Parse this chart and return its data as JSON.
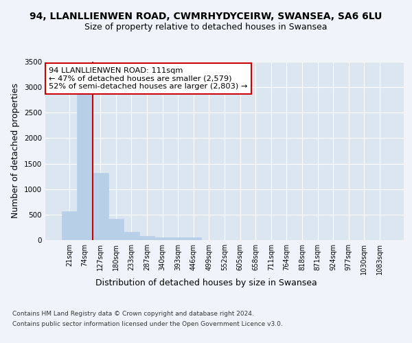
{
  "title1": "94, LLANLLIENWEN ROAD, CWMRHYDYCEIRW, SWANSEA, SA6 6LU",
  "title2": "Size of property relative to detached houses in Swansea",
  "xlabel": "Distribution of detached houses by size in Swansea",
  "ylabel": "Number of detached properties",
  "categories": [
    "21sqm",
    "74sqm",
    "127sqm",
    "180sqm",
    "233sqm",
    "287sqm",
    "340sqm",
    "393sqm",
    "446sqm",
    "499sqm",
    "552sqm",
    "605sqm",
    "658sqm",
    "711sqm",
    "764sqm",
    "818sqm",
    "871sqm",
    "924sqm",
    "977sqm",
    "1030sqm",
    "1083sqm"
  ],
  "values": [
    570,
    2910,
    1315,
    415,
    160,
    85,
    60,
    55,
    50,
    0,
    0,
    0,
    0,
    0,
    0,
    0,
    0,
    0,
    0,
    0,
    0
  ],
  "bar_color": "#b8cfe8",
  "bar_edge_color": "#b8cfe8",
  "highlight_bar_index": 1,
  "highlight_line_color": "#cc0000",
  "ylim": [
    0,
    3500
  ],
  "yticks": [
    0,
    500,
    1000,
    1500,
    2000,
    2500,
    3000,
    3500
  ],
  "annotation_text": "94 LLANLLIENWEN ROAD: 111sqm\n← 47% of detached houses are smaller (2,579)\n52% of semi-detached houses are larger (2,803) →",
  "annotation_box_color": "#ffffff",
  "annotation_box_edge": "#cc0000",
  "footnote1": "Contains HM Land Registry data © Crown copyright and database right 2024.",
  "footnote2": "Contains public sector information licensed under the Open Government Licence v3.0.",
  "bg_color": "#f0f4fa",
  "plot_bg_color": "#dce6f0",
  "grid_color": "#ffffff",
  "title_fontsize": 10,
  "subtitle_fontsize": 9,
  "tick_fontsize": 7,
  "label_fontsize": 9,
  "footnote_fontsize": 6.5
}
